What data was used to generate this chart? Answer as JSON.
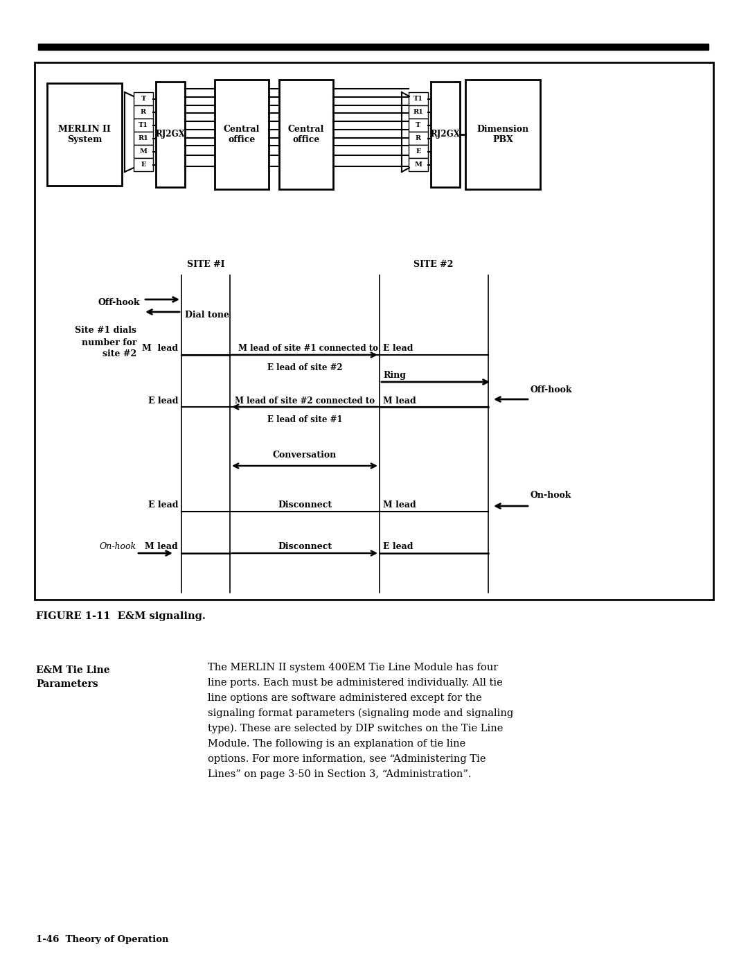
{
  "bg_color": "#ffffff",
  "fig_width": 10.8,
  "fig_height": 13.95,
  "figure_caption": "FIGURE 1-11  E&M signaling.",
  "footer_text": "1-46  Theory of Operation",
  "section_title_line1": "E&M Tie Line",
  "section_title_line2": "Parameters",
  "body_lines": [
    "The MERLIN II system 400EM Tie Line Module has four",
    "line ports. Each must be administered individually. All tie",
    "line options are software administered except for the",
    "signaling format parameters (signaling mode and signaling",
    "type). These are selected by DIP switches on the Tie Line",
    "Module. The following is an explanation of tie line",
    "options. For more information, see “Administering Tie",
    "Lines” on page 3-50 in Section 3, “Administration”."
  ],
  "conn_labels_left": [
    "T",
    "R",
    "T1",
    "R1",
    "M",
    "E"
  ],
  "conn_labels_right": [
    "T1",
    "R1",
    "T",
    "R",
    "E",
    "M"
  ]
}
